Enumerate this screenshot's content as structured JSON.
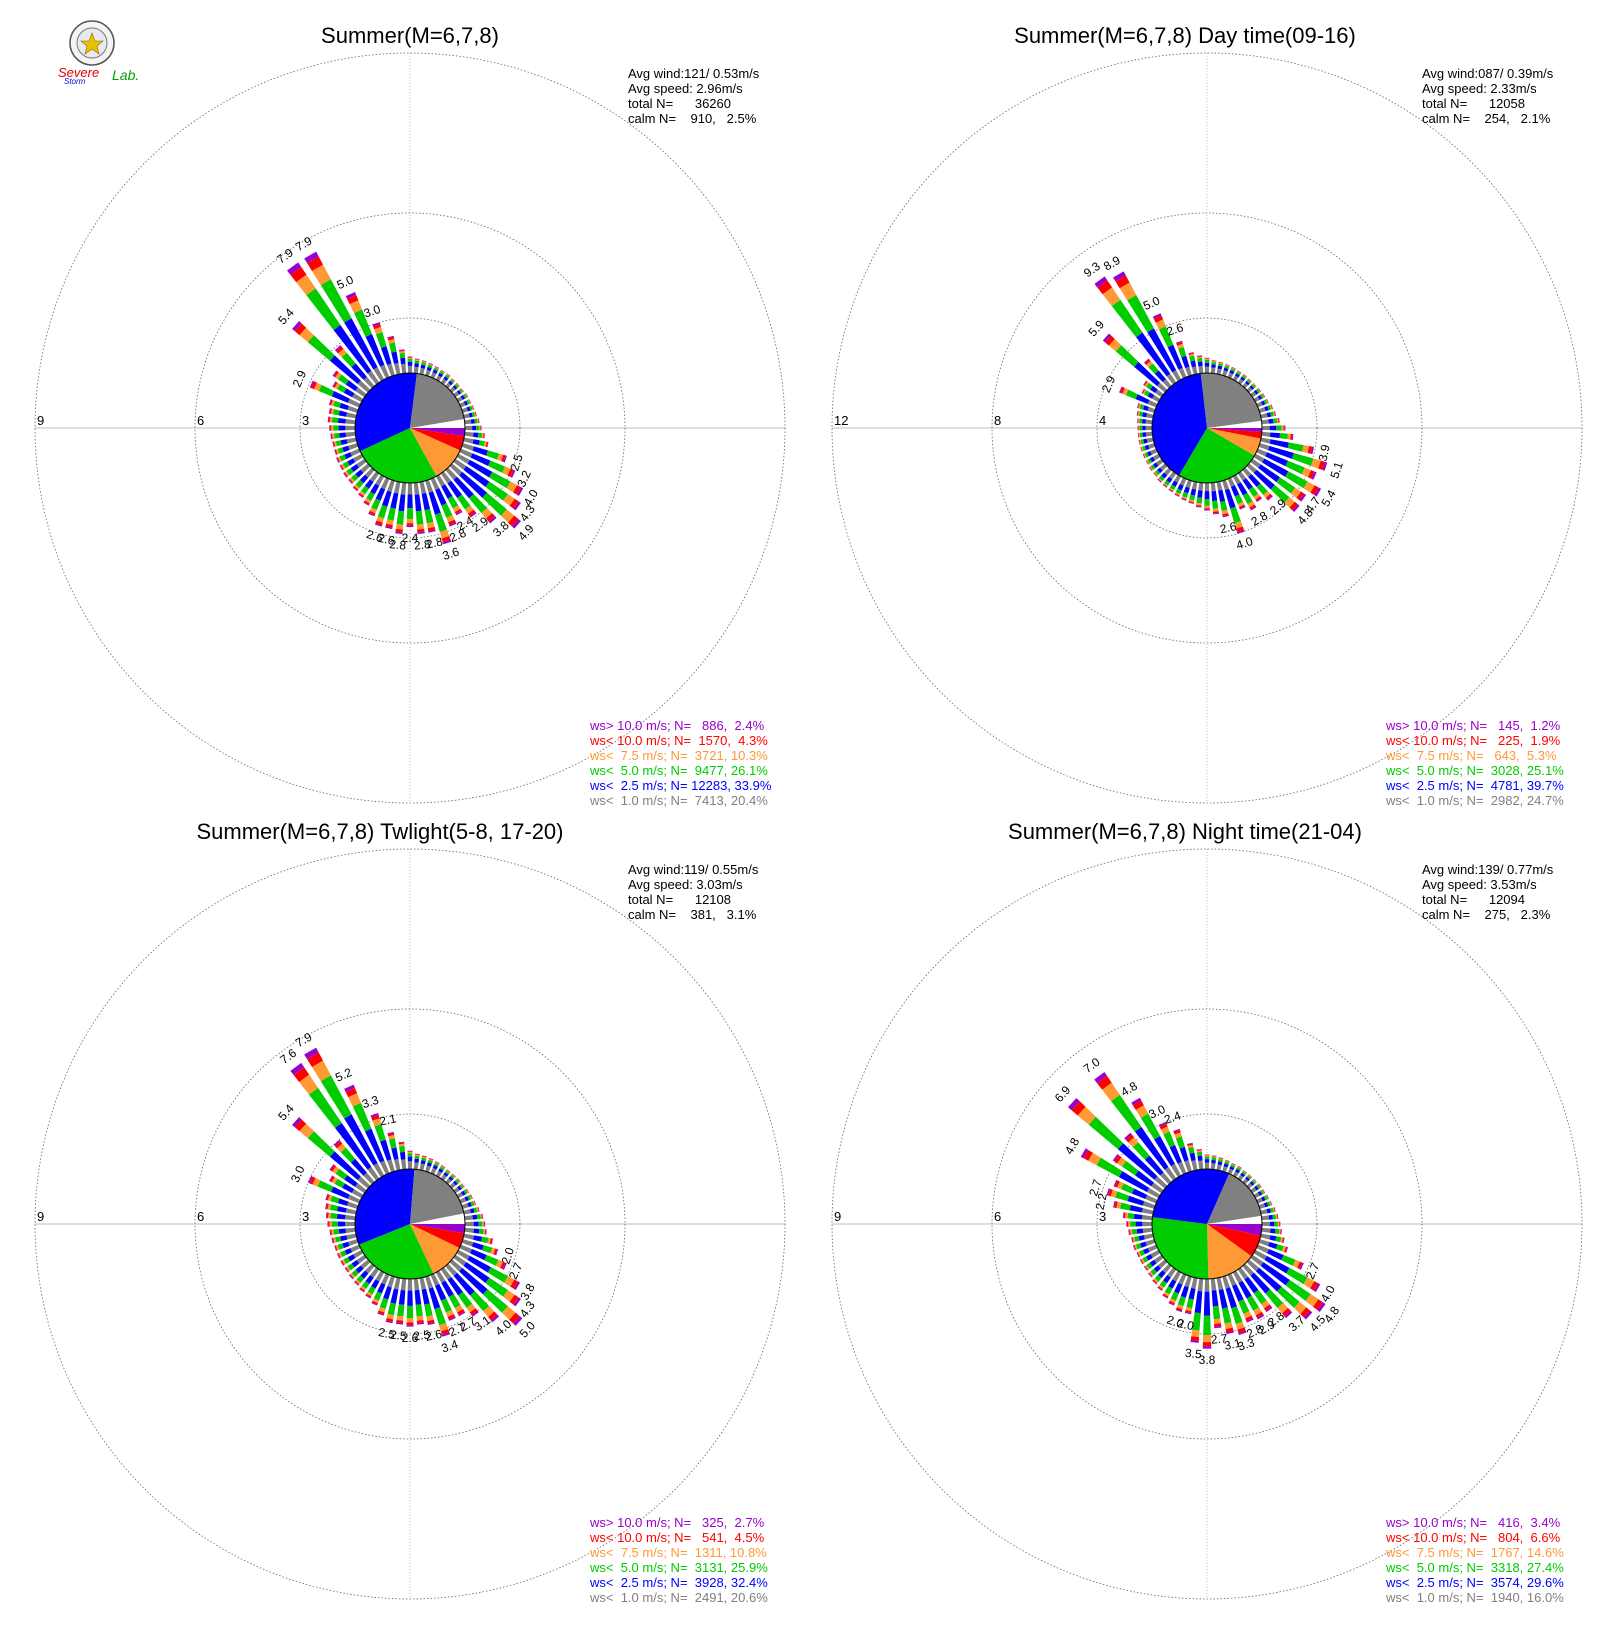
{
  "logo": {
    "text_1": "Severe",
    "text_2": "Storm",
    "text_3": "Lab."
  },
  "colors": {
    "gt10": "#9900cc",
    "lt10": "#ff0000",
    "lt7_5": "#ff9933",
    "lt5": "#00cc00",
    "lt2_5": "#0000ff",
    "lt1": "#808080"
  },
  "chart_data": [
    {
      "type": "wind-rose",
      "title": "Summer(M=6,7,8)",
      "stats": [
        "Avg wind:121/ 0.53m/s",
        "Avg speed: 2.96m/s",
        "total N=      36260",
        "calm N=    910,   2.5%"
      ],
      "rings": [
        3,
        6,
        9
      ],
      "ring_labels": [
        "3",
        "6",
        "9"
      ],
      "direction_labels": [
        "",
        "",
        "",
        "",
        "",
        "",
        "",
        "",
        "",
        "",
        "",
        "",
        "",
        "",
        "",
        "",
        "",
        "",
        "2.5",
        "3.2",
        "4.0",
        "4.3",
        "4.9",
        "3.8",
        "2.9",
        "2.4",
        "2.8",
        "3.6",
        "2.8",
        "2.8",
        "2.4",
        "2.8",
        "2.6",
        "2.6",
        "",
        "",
        "",
        "",
        "",
        "",
        "",
        "",
        "",
        "",
        "",
        "",
        "",
        "",
        "",
        "2.9",
        "",
        "",
        "5.4",
        "",
        "7.9",
        "7.9",
        "5.0",
        "3.0",
        "",
        ""
      ],
      "totals": [
        0.9,
        0.8,
        0.75,
        0.7,
        0.65,
        0.6,
        0.6,
        0.55,
        0.55,
        0.55,
        0.6,
        0.6,
        0.65,
        0.7,
        0.8,
        0.9,
        1.1,
        1.35,
        2.5,
        3.2,
        4.0,
        4.3,
        4.9,
        3.8,
        2.9,
        2.4,
        2.8,
        3.6,
        2.8,
        2.8,
        2.4,
        2.8,
        2.6,
        2.6,
        2.2,
        1.8,
        1.6,
        1.5,
        1.4,
        1.4,
        1.35,
        1.35,
        1.3,
        1.3,
        1.35,
        1.4,
        1.5,
        1.5,
        1.6,
        2.9,
        1.8,
        2.1,
        5.4,
        2.9,
        7.9,
        7.9,
        5.0,
        3.0,
        2.1,
        1.3
      ],
      "pie": [
        {
          "name": "ws> 10.0 m/s",
          "fraction": 0.024
        },
        {
          "name": "ws< 10.0 m/s",
          "fraction": 0.043
        },
        {
          "name": "ws<  7.5 m/s",
          "fraction": 0.103
        },
        {
          "name": "ws<  5.0 m/s",
          "fraction": 0.261
        },
        {
          "name": "ws<  2.5 m/s",
          "fraction": 0.339
        },
        {
          "name": "ws<  1.0 m/s",
          "fraction": 0.204
        }
      ],
      "legend": [
        {
          "label": "ws> 10.0 m/s; N=   886,  2.4%",
          "color": "#9900cc"
        },
        {
          "label": "ws< 10.0 m/s; N=  1570,  4.3%",
          "color": "#ff0000"
        },
        {
          "label": "ws<  7.5 m/s; N=  3721, 10.3%",
          "color": "#ff9933"
        },
        {
          "label": "ws<  5.0 m/s; N=  9477, 26.1%",
          "color": "#00cc00"
        },
        {
          "label": "ws<  2.5 m/s; N= 12283, 33.9%",
          "color": "#0000ff"
        },
        {
          "label": "ws<  1.0 m/s; N=  7413, 20.4%",
          "color": "#808080"
        }
      ]
    },
    {
      "type": "wind-rose",
      "title": "Summer(M=6,7,8) Day time(09-16)",
      "stats": [
        "Avg wind:087/ 0.39m/s",
        "Avg speed: 2.33m/s",
        "total N=      12058",
        "calm N=    254,   2.1%"
      ],
      "rings": [
        4,
        8,
        12
      ],
      "ring_labels": [
        "4",
        "8",
        "12"
      ],
      "direction_labels": [
        "",
        "",
        "",
        "",
        "",
        "",
        "",
        "",
        "",
        "",
        "",
        "",
        "",
        "",
        "",
        "",
        "",
        "3.9",
        "5.1",
        "",
        "5.4",
        "4.7",
        "4.8",
        "2.9",
        "",
        "2.8",
        "",
        "4.0",
        "2.6",
        "",
        "",
        "",
        "",
        "",
        "",
        "",
        "",
        "",
        "",
        "",
        "",
        "",
        "",
        "",
        "",
        "",
        "",
        "",
        "",
        "2.9",
        "",
        "",
        "5.9",
        "",
        "9.3",
        "8.9",
        "5.0",
        "2.6",
        "",
        ""
      ],
      "totals": [
        1.1,
        0.95,
        0.9,
        0.85,
        0.8,
        0.75,
        0.75,
        0.7,
        0.7,
        0.75,
        0.8,
        0.85,
        1.0,
        1.1,
        1.3,
        1.7,
        2.3,
        3.9,
        5.1,
        4.6,
        5.4,
        4.7,
        4.8,
        2.9,
        2.5,
        2.8,
        2.4,
        4.0,
        2.6,
        2.3,
        2.0,
        1.8,
        1.6,
        1.5,
        1.4,
        1.3,
        1.25,
        1.2,
        1.1,
        1.1,
        1.05,
        1.05,
        1.05,
        1.05,
        1.05,
        1.05,
        1.1,
        1.2,
        1.3,
        2.9,
        1.4,
        1.6,
        5.9,
        2.6,
        9.3,
        8.9,
        5.0,
        2.6,
        1.6,
        1.3
      ],
      "pie": [
        {
          "name": "ws> 10.0 m/s",
          "fraction": 0.012
        },
        {
          "name": "ws< 10.0 m/s",
          "fraction": 0.019
        },
        {
          "name": "ws<  7.5 m/s",
          "fraction": 0.053
        },
        {
          "name": "ws<  5.0 m/s",
          "fraction": 0.251
        },
        {
          "name": "ws<  2.5 m/s",
          "fraction": 0.397
        },
        {
          "name": "ws<  1.0 m/s",
          "fraction": 0.247
        }
      ],
      "legend": [
        {
          "label": "ws> 10.0 m/s; N=   145,  1.2%",
          "color": "#9900cc"
        },
        {
          "label": "ws< 10.0 m/s; N=   225,  1.9%",
          "color": "#ff0000"
        },
        {
          "label": "ws<  7.5 m/s; N=   643,  5.3%",
          "color": "#ff9933"
        },
        {
          "label": "ws<  5.0 m/s; N=  3028, 25.1%",
          "color": "#00cc00"
        },
        {
          "label": "ws<  2.5 m/s; N=  4781, 39.7%",
          "color": "#0000ff"
        },
        {
          "label": "ws<  1.0 m/s; N=  2982, 24.7%",
          "color": "#808080"
        }
      ]
    },
    {
      "type": "wind-rose",
      "title": "Summer(M=6,7,8) Twlight(5-8, 17-20)",
      "stats": [
        "Avg wind:119/ 0.55m/s",
        "Avg speed: 3.03m/s",
        "total N=      12108",
        "calm N=    381,   3.1%"
      ],
      "rings": [
        3,
        6,
        9
      ],
      "ring_labels": [
        "3",
        "6",
        "9"
      ],
      "direction_labels": [
        "",
        "",
        "",
        "",
        "",
        "",
        "",
        "",
        "",
        "",
        "",
        "",
        "",
        "",
        "",
        "",
        "",
        "",
        "2.0",
        "2.7",
        "3.8",
        "4.3",
        "5.0",
        "4.0",
        "3.1",
        "2.7",
        "2.7",
        "3.4",
        "2.6",
        "2.5",
        "2.6",
        "2.5",
        "2.5",
        "",
        "",
        "",
        "",
        "",
        "",
        "",
        "",
        "",
        "",
        "",
        "",
        "",
        "",
        "",
        "",
        "3.0",
        "",
        "",
        "5.4",
        "",
        "7.6",
        "7.9",
        "5.2",
        "3.3",
        "2.1",
        ""
      ],
      "totals": [
        1.0,
        0.85,
        0.8,
        0.75,
        0.7,
        0.65,
        0.6,
        0.6,
        0.6,
        0.6,
        0.65,
        0.7,
        0.75,
        0.85,
        1.0,
        1.1,
        1.2,
        1.6,
        2.0,
        2.7,
        3.8,
        4.3,
        5.0,
        4.0,
        3.1,
        2.7,
        2.7,
        3.4,
        2.6,
        2.5,
        2.6,
        2.5,
        2.5,
        2.2,
        1.8,
        1.6,
        1.5,
        1.4,
        1.35,
        1.3,
        1.3,
        1.3,
        1.3,
        1.35,
        1.4,
        1.5,
        1.6,
        1.7,
        1.8,
        3.0,
        2.0,
        2.3,
        5.4,
        3.0,
        7.6,
        7.9,
        5.2,
        3.3,
        2.1,
        1.5
      ],
      "pie": [
        {
          "name": "ws> 10.0 m/s",
          "fraction": 0.027
        },
        {
          "name": "ws< 10.0 m/s",
          "fraction": 0.045
        },
        {
          "name": "ws<  7.5 m/s",
          "fraction": 0.108
        },
        {
          "name": "ws<  5.0 m/s",
          "fraction": 0.259
        },
        {
          "name": "ws<  2.5 m/s",
          "fraction": 0.324
        },
        {
          "name": "ws<  1.0 m/s",
          "fraction": 0.206
        }
      ],
      "legend": [
        {
          "label": "ws> 10.0 m/s; N=   325,  2.7%",
          "color": "#9900cc"
        },
        {
          "label": "ws< 10.0 m/s; N=   541,  4.5%",
          "color": "#ff0000"
        },
        {
          "label": "ws<  7.5 m/s; N=  1311, 10.8%",
          "color": "#ff9933"
        },
        {
          "label": "ws<  5.0 m/s; N=  3131, 25.9%",
          "color": "#00cc00"
        },
        {
          "label": "ws<  2.5 m/s; N=  3928, 32.4%",
          "color": "#0000ff"
        },
        {
          "label": "ws<  1.0 m/s; N=  2491, 20.6%",
          "color": "#808080"
        }
      ]
    },
    {
      "type": "wind-rose",
      "title": "Summer(M=6,7,8) Night time(21-04)",
      "stats": [
        "Avg wind:139/ 0.77m/s",
        "Avg speed: 3.53m/s",
        "total N=      12094",
        "calm N=    275,   2.3%"
      ],
      "rings": [
        3,
        6,
        9
      ],
      "ring_labels": [
        "3",
        "6",
        "9"
      ],
      "direction_labels": [
        "",
        "",
        "",
        "",
        "",
        "",
        "",
        "",
        "",
        "",
        "",
        "",
        "",
        "",
        "",
        "",
        "",
        "",
        "",
        "2.7",
        "4.0",
        "4.8",
        "4.5",
        "3.7",
        "2.8",
        "2.9",
        "2.8",
        "3.3",
        "3.1",
        "2.7",
        "3.8",
        "3.5",
        "2.0",
        "2.0",
        "",
        "",
        "",
        "",
        "",
        "",
        "",
        "",
        "",
        "",
        "",
        "",
        "",
        "2.2",
        "2.7",
        "",
        "4.8",
        "",
        "6.9",
        "",
        "7.0",
        "4.8",
        "3.0",
        "2.4",
        "",
        ""
      ],
      "totals": [
        0.8,
        0.75,
        0.7,
        0.65,
        0.6,
        0.6,
        0.55,
        0.55,
        0.55,
        0.6,
        0.6,
        0.65,
        0.7,
        0.8,
        0.9,
        1.0,
        1.1,
        1.3,
        1.6,
        2.7,
        4.0,
        4.8,
        4.5,
        3.7,
        2.8,
        2.9,
        2.8,
        3.3,
        3.1,
        2.7,
        3.8,
        3.5,
        2.0,
        2.0,
        1.8,
        1.6,
        1.4,
        1.3,
        1.2,
        1.15,
        1.15,
        1.15,
        1.2,
        1.2,
        1.3,
        1.4,
        1.6,
        2.2,
        2.7,
        2.5,
        4.8,
        3.2,
        6.9,
        3.5,
        7.0,
        4.8,
        3.0,
        2.4,
        1.5,
        1.1
      ],
      "pie": [
        {
          "name": "ws> 10.0 m/s",
          "fraction": 0.034
        },
        {
          "name": "ws< 10.0 m/s",
          "fraction": 0.066
        },
        {
          "name": "ws<  7.5 m/s",
          "fraction": 0.146
        },
        {
          "name": "ws<  5.0 m/s",
          "fraction": 0.274
        },
        {
          "name": "ws<  2.5 m/s",
          "fraction": 0.296
        },
        {
          "name": "ws<  1.0 m/s",
          "fraction": 0.16
        }
      ],
      "legend": [
        {
          "label": "ws> 10.0 m/s; N=   416,  3.4%",
          "color": "#9900cc"
        },
        {
          "label": "ws< 10.0 m/s; N=   804,  6.6%",
          "color": "#ff0000"
        },
        {
          "label": "ws<  7.5 m/s; N=  1767, 14.6%",
          "color": "#ff9933"
        },
        {
          "label": "ws<  5.0 m/s; N=  3318, 27.4%",
          "color": "#00cc00"
        },
        {
          "label": "ws<  2.5 m/s; N=  3574, 29.6%",
          "color": "#0000ff"
        },
        {
          "label": "ws<  1.0 m/s; N=  1940, 16.0%",
          "color": "#808080"
        }
      ]
    }
  ]
}
